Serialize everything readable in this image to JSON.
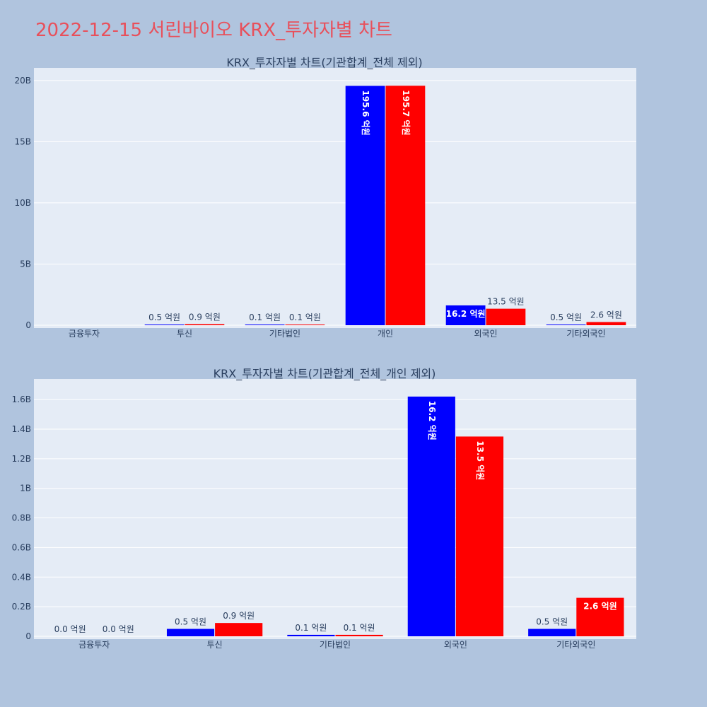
{
  "title": "2022-12-15 서린바이오 KRX_투자자별 차트",
  "colors": {
    "background": "#b0c4de",
    "plot_bg": "#e5ecf6",
    "title": "#e8505b",
    "series1": "#0000ff",
    "series2": "#ff0000"
  },
  "chart_data": [
    {
      "type": "bar",
      "title": "KRX_투자자별 차트(기관합계_전체 제외)",
      "categories": [
        "금융투자",
        "투신",
        "기타법인",
        "개인",
        "외국인",
        "기타외국인"
      ],
      "series": [
        {
          "color": "#0000ff",
          "values": [
            0,
            0.05,
            0.01,
            19.56,
            1.62,
            0.05
          ],
          "labels": [
            "",
            "0.5 억원",
            "0.1 억원",
            "195.6 억원",
            "16.2 억원",
            "0.5 억원"
          ]
        },
        {
          "color": "#ff0000",
          "values": [
            0,
            0.09,
            0.01,
            19.57,
            1.35,
            0.26
          ],
          "labels": [
            "",
            "0.9 억원",
            "0.1 억원",
            "195.7 억원",
            "13.5 억원",
            "2.6 억원"
          ]
        }
      ],
      "value_unit": "B",
      "ylim": [
        0,
        20.8
      ],
      "yticks": [
        0,
        5,
        10,
        15,
        20
      ],
      "ytick_labels": [
        "0",
        "5B",
        "10B",
        "15B",
        "20B"
      ],
      "grid": true
    },
    {
      "type": "bar",
      "title": "KRX_투자자별 차트(기관합계_전체_개인 제외)",
      "categories": [
        "금융투자",
        "투신",
        "기타법인",
        "외국인",
        "기타외국인"
      ],
      "series": [
        {
          "color": "#0000ff",
          "values": [
            0,
            0.05,
            0.01,
            1.62,
            0.05
          ],
          "labels": [
            "0.0 억원",
            "0.5 억원",
            "0.1 억원",
            "16.2 억원",
            "0.5 억원"
          ]
        },
        {
          "color": "#ff0000",
          "values": [
            0,
            0.09,
            0.01,
            1.35,
            0.26
          ],
          "labels": [
            "0.0 억원",
            "0.9 억원",
            "0.1 억원",
            "13.5 억원",
            "2.6 억원"
          ]
        }
      ],
      "value_unit": "B",
      "ylim": [
        0,
        1.72
      ],
      "yticks": [
        0,
        0.2,
        0.4,
        0.6,
        0.8,
        1.0,
        1.2,
        1.4,
        1.6
      ],
      "ytick_labels": [
        "0",
        "0.2B",
        "0.4B",
        "0.6B",
        "0.8B",
        "1B",
        "1.2B",
        "1.4B",
        "1.6B"
      ],
      "grid": true
    }
  ]
}
